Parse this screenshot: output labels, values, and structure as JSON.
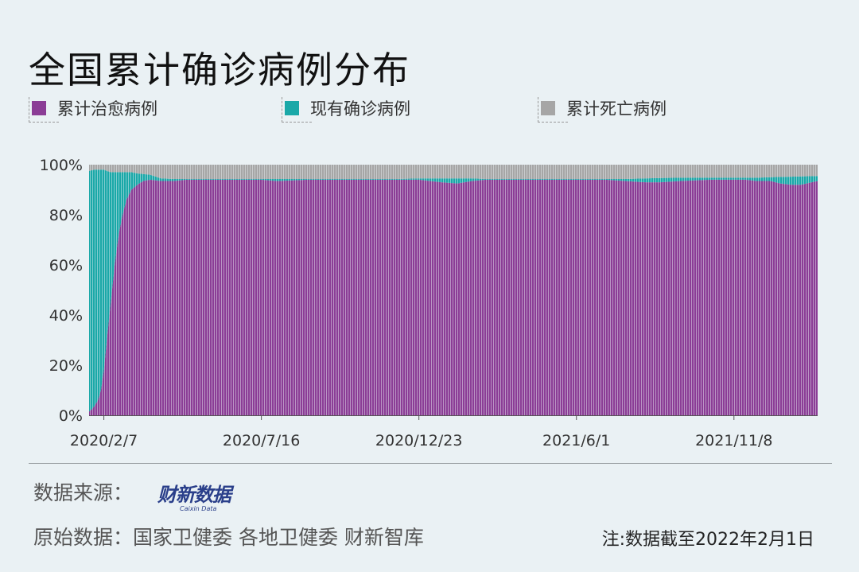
{
  "title": "全国累计确诊病例分布",
  "legend": [
    {
      "label": "累计治愈病例",
      "color": "#8b3d96"
    },
    {
      "label": "现有确诊病例",
      "color": "#1aa8a8"
    },
    {
      "label": "累计死亡病例",
      "color": "#a6a6a6"
    }
  ],
  "footer": {
    "source_label": "数据来源：",
    "logo_text": "财新数据",
    "logo_sub": "Caixin Data",
    "original_label": "原始数据：",
    "original_sources": "国家卫健委 各地卫健委 财新智库",
    "note": "注:数据截至2022年2月1日"
  },
  "chart_data": {
    "type": "area",
    "stacked": "percent",
    "ylim": [
      0,
      100
    ],
    "yticks": [
      "0%",
      "20%",
      "40%",
      "60%",
      "80%",
      "100%"
    ],
    "xtick_labels": [
      "2020/2/7",
      "2020/7/16",
      "2020/12/23",
      "2021/6/1",
      "2021/11/8"
    ],
    "x": [
      "2020/1/23",
      "2020/1/26",
      "2020/1/29",
      "2020/2/1",
      "2020/2/4",
      "2020/2/7",
      "2020/2/10",
      "2020/2/14",
      "2020/2/18",
      "2020/2/22",
      "2020/2/26",
      "2020/3/1",
      "2020/3/6",
      "2020/3/12",
      "2020/3/18",
      "2020/3/25",
      "2020/4/5",
      "2020/4/18",
      "2020/5/1",
      "2020/6/1",
      "2020/7/1",
      "2020/7/16",
      "2020/8/1",
      "2020/9/1",
      "2020/10/1",
      "2020/11/1",
      "2020/12/1",
      "2020/12/23",
      "2021/1/15",
      "2021/1/31",
      "2021/2/15",
      "2021/3/1",
      "2021/4/1",
      "2021/5/1",
      "2021/6/1",
      "2021/7/1",
      "2021/7/20",
      "2021/8/10",
      "2021/8/25",
      "2021/9/15",
      "2021/10/15",
      "2021/11/8",
      "2021/11/20",
      "2021/12/1",
      "2021/12/15",
      "2021/12/25",
      "2022/1/5",
      "2022/1/15",
      "2022/2/1"
    ],
    "series": [
      {
        "name": "累计治愈病例",
        "values": [
          1.5,
          2.5,
          4,
          6,
          10,
          18,
          30,
          45,
          60,
          72,
          80,
          86,
          90,
          92,
          93.5,
          94,
          93.5,
          93.5,
          94,
          94,
          94,
          94,
          93.5,
          94,
          94,
          94,
          94,
          94,
          93,
          92.5,
          93.5,
          94,
          94,
          94,
          94,
          94,
          93.5,
          93,
          93,
          93.5,
          94,
          94,
          94,
          93.5,
          93.5,
          92.5,
          92,
          92,
          93.5
        ]
      },
      {
        "name": "现有确诊病例",
        "values": [
          96,
          95.3,
          94,
          92,
          88,
          80,
          67.5,
          52,
          37,
          25,
          17,
          11,
          7,
          4.5,
          2.8,
          2,
          1,
          0.8,
          0.3,
          0.3,
          0.3,
          0.3,
          0.8,
          0.3,
          0.3,
          0.3,
          0.3,
          0.5,
          1.5,
          2,
          1,
          0.3,
          0.3,
          0.3,
          0.3,
          0.3,
          0.8,
          1.5,
          1.7,
          1.3,
          0.8,
          0.8,
          0.8,
          1.3,
          1.5,
          2.6,
          3.2,
          3.3,
          2
        ]
      },
      {
        "name": "累计死亡病例",
        "values": [
          2.5,
          2.2,
          2,
          2,
          2,
          2,
          2.5,
          3,
          3,
          3,
          3,
          3,
          3,
          3.5,
          3.7,
          4,
          5.5,
          5.7,
          5.7,
          5.7,
          5.7,
          5.7,
          5.7,
          5.7,
          5.7,
          5.7,
          5.7,
          5.5,
          5.5,
          5.5,
          5.5,
          5.7,
          5.7,
          5.7,
          5.7,
          5.7,
          5.7,
          5.5,
          5.3,
          5.2,
          5.2,
          5.2,
          5.2,
          5.2,
          5,
          4.9,
          4.8,
          4.7,
          4.5
        ]
      }
    ]
  }
}
